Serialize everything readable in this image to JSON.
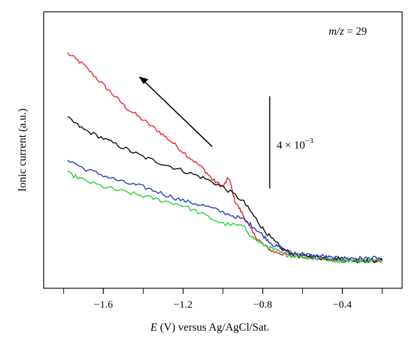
{
  "chart_data": {
    "type": "line",
    "title": "",
    "xlabel_var": "E",
    "xlabel_rest": " (V) versus Ag/AgCl/Sat.",
    "ylabel": "Ionic current (a.u.)",
    "xlim": [
      -1.9,
      -0.1
    ],
    "ylim": [
      -0.1,
      1.1
    ],
    "x_ticks": [
      -1.6,
      -1.2,
      -0.8,
      -0.4
    ],
    "x_tick_labels": [
      "−1.6",
      "−1.2",
      "−0.8",
      "−0.4"
    ],
    "grid": false,
    "legend": "none",
    "annotations": {
      "mz_var": "m/z",
      "mz_rest": " = 29",
      "scale_text": "4 × 10",
      "scale_exp": "−3",
      "scale_bar_length": 0.4,
      "arrow_direction": "toward more negative potential"
    },
    "series": [
      {
        "color": "#e8292b",
        "x": [
          -1.78,
          -1.7,
          -1.62,
          -1.55,
          -1.48,
          -1.4,
          -1.32,
          -1.25,
          -1.17,
          -1.1,
          -1.05,
          -1.0,
          -0.97,
          -0.94,
          -0.9,
          -0.85,
          -0.8,
          -0.75,
          -0.7,
          -0.65,
          -0.6,
          -0.55,
          -0.5,
          -0.45,
          -0.4,
          -0.35,
          -0.3,
          -0.25,
          -0.2
        ],
        "y": [
          0.92,
          0.87,
          0.8,
          0.74,
          0.68,
          0.63,
          0.58,
          0.53,
          0.47,
          0.42,
          0.37,
          0.34,
          0.38,
          0.28,
          0.22,
          0.14,
          0.09,
          0.06,
          0.05,
          0.04,
          0.04,
          0.03,
          0.03,
          0.02,
          0.02,
          0.02,
          0.02,
          0.02,
          0.02
        ]
      },
      {
        "color": "#111111",
        "x": [
          -1.78,
          -1.7,
          -1.6,
          -1.5,
          -1.4,
          -1.3,
          -1.2,
          -1.1,
          -1.0,
          -0.9,
          -0.85,
          -0.8,
          -0.75,
          -0.7,
          -0.65,
          -0.6,
          -0.55,
          -0.5,
          -0.45,
          -0.4,
          -0.35,
          -0.3,
          -0.25,
          -0.2
        ],
        "y": [
          0.64,
          0.59,
          0.55,
          0.51,
          0.47,
          0.44,
          0.41,
          0.38,
          0.34,
          0.28,
          0.22,
          0.16,
          0.11,
          0.07,
          0.05,
          0.04,
          0.04,
          0.03,
          0.03,
          0.03,
          0.02,
          0.02,
          0.02,
          0.02
        ]
      },
      {
        "color": "#2b3bc8",
        "x": [
          -1.78,
          -1.7,
          -1.6,
          -1.5,
          -1.4,
          -1.3,
          -1.2,
          -1.1,
          -1.0,
          -0.9,
          -0.85,
          -0.8,
          -0.75,
          -0.7,
          -0.65,
          -0.6,
          -0.55,
          -0.5,
          -0.45,
          -0.4,
          -0.35,
          -0.3,
          -0.25,
          -0.2
        ],
        "y": [
          0.46,
          0.42,
          0.39,
          0.36,
          0.34,
          0.31,
          0.28,
          0.26,
          0.23,
          0.2,
          0.17,
          0.13,
          0.09,
          0.07,
          0.05,
          0.05,
          0.04,
          0.04,
          0.03,
          0.03,
          0.03,
          0.03,
          0.03,
          0.03
        ]
      },
      {
        "color": "#2ad13a",
        "x": [
          -1.78,
          -1.7,
          -1.6,
          -1.5,
          -1.4,
          -1.3,
          -1.2,
          -1.1,
          -1.0,
          -0.9,
          -0.85,
          -0.8,
          -0.75,
          -0.7,
          -0.65,
          -0.6,
          -0.55,
          -0.5,
          -0.45,
          -0.4,
          -0.35,
          -0.3,
          -0.25,
          -0.2
        ],
        "y": [
          0.4,
          0.37,
          0.34,
          0.32,
          0.3,
          0.28,
          0.26,
          0.22,
          0.18,
          0.17,
          0.12,
          0.09,
          0.07,
          0.05,
          0.04,
          0.04,
          0.03,
          0.03,
          0.02,
          0.02,
          0.02,
          0.02,
          0.02,
          0.02
        ]
      }
    ]
  }
}
